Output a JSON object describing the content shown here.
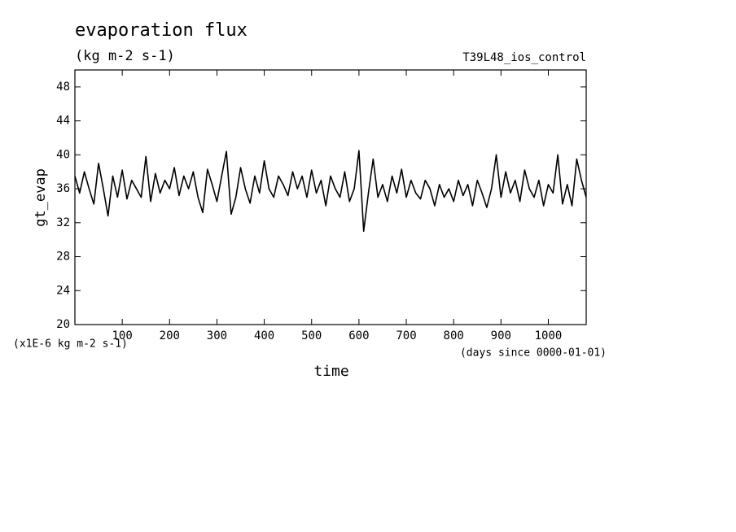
{
  "chart_data": {
    "type": "line",
    "title": "evaporation flux",
    "subtitle": "(kg m-2 s-1)",
    "annotation": "T39L48_ios_control",
    "ylabel": "gt_evap",
    "xlabel": "time",
    "yunits": "(x1E-6 kg m-2 s-1)",
    "xunits": "(days since 0000-01-01)",
    "xlim": [
      0,
      1080
    ],
    "ylim": [
      20,
      50
    ],
    "xticks": [
      100,
      200,
      300,
      400,
      500,
      600,
      700,
      800,
      900,
      1000
    ],
    "yticks": [
      20,
      24,
      28,
      32,
      36,
      40,
      44,
      48
    ],
    "x": [
      0,
      10,
      20,
      30,
      40,
      50,
      60,
      70,
      80,
      90,
      100,
      110,
      120,
      130,
      140,
      150,
      160,
      170,
      180,
      190,
      200,
      210,
      220,
      230,
      240,
      250,
      260,
      270,
      280,
      290,
      300,
      310,
      320,
      330,
      340,
      350,
      360,
      370,
      380,
      390,
      400,
      410,
      420,
      430,
      440,
      450,
      460,
      470,
      480,
      490,
      500,
      510,
      520,
      530,
      540,
      550,
      560,
      570,
      580,
      590,
      600,
      610,
      620,
      630,
      640,
      650,
      660,
      670,
      680,
      690,
      700,
      710,
      720,
      730,
      740,
      750,
      760,
      770,
      780,
      790,
      800,
      810,
      820,
      830,
      840,
      850,
      860,
      870,
      880,
      890,
      900,
      910,
      920,
      930,
      940,
      950,
      960,
      970,
      980,
      990,
      1000,
      1010,
      1020,
      1030,
      1040,
      1050,
      1060,
      1070,
      1080
    ],
    "series": [
      {
        "name": "gt_evap",
        "color": "#000000",
        "values": [
          37.5,
          35.5,
          38,
          36,
          34.2,
          39,
          36,
          32.8,
          37.5,
          35,
          38.2,
          34.8,
          37,
          36,
          35,
          39.8,
          34.5,
          37.8,
          35.5,
          37,
          36,
          38.5,
          35.2,
          37.5,
          36,
          38,
          35,
          33.2,
          38.3,
          36.5,
          34.5,
          37.5,
          40.4,
          33,
          35,
          38.5,
          36,
          34.3,
          37.5,
          35.5,
          39.3,
          36,
          35,
          37.5,
          36.5,
          35.2,
          38,
          36,
          37.5,
          35,
          38.2,
          35.5,
          37,
          34,
          37.5,
          36,
          35,
          38,
          34.5,
          36,
          40.5,
          31,
          35.5,
          39.5,
          35,
          36.5,
          34.5,
          37.5,
          35.5,
          38.3,
          35,
          37,
          35.5,
          34.8,
          37,
          36,
          34,
          36.5,
          35,
          36,
          34.5,
          37,
          35.2,
          36.5,
          34,
          37,
          35.5,
          33.8,
          36,
          40,
          35,
          38,
          35.5,
          37,
          34.5,
          38.2,
          36,
          35,
          37,
          34,
          36.5,
          35.5,
          40,
          34.2,
          36.5,
          34,
          39.5,
          37,
          35
        ]
      }
    ]
  }
}
